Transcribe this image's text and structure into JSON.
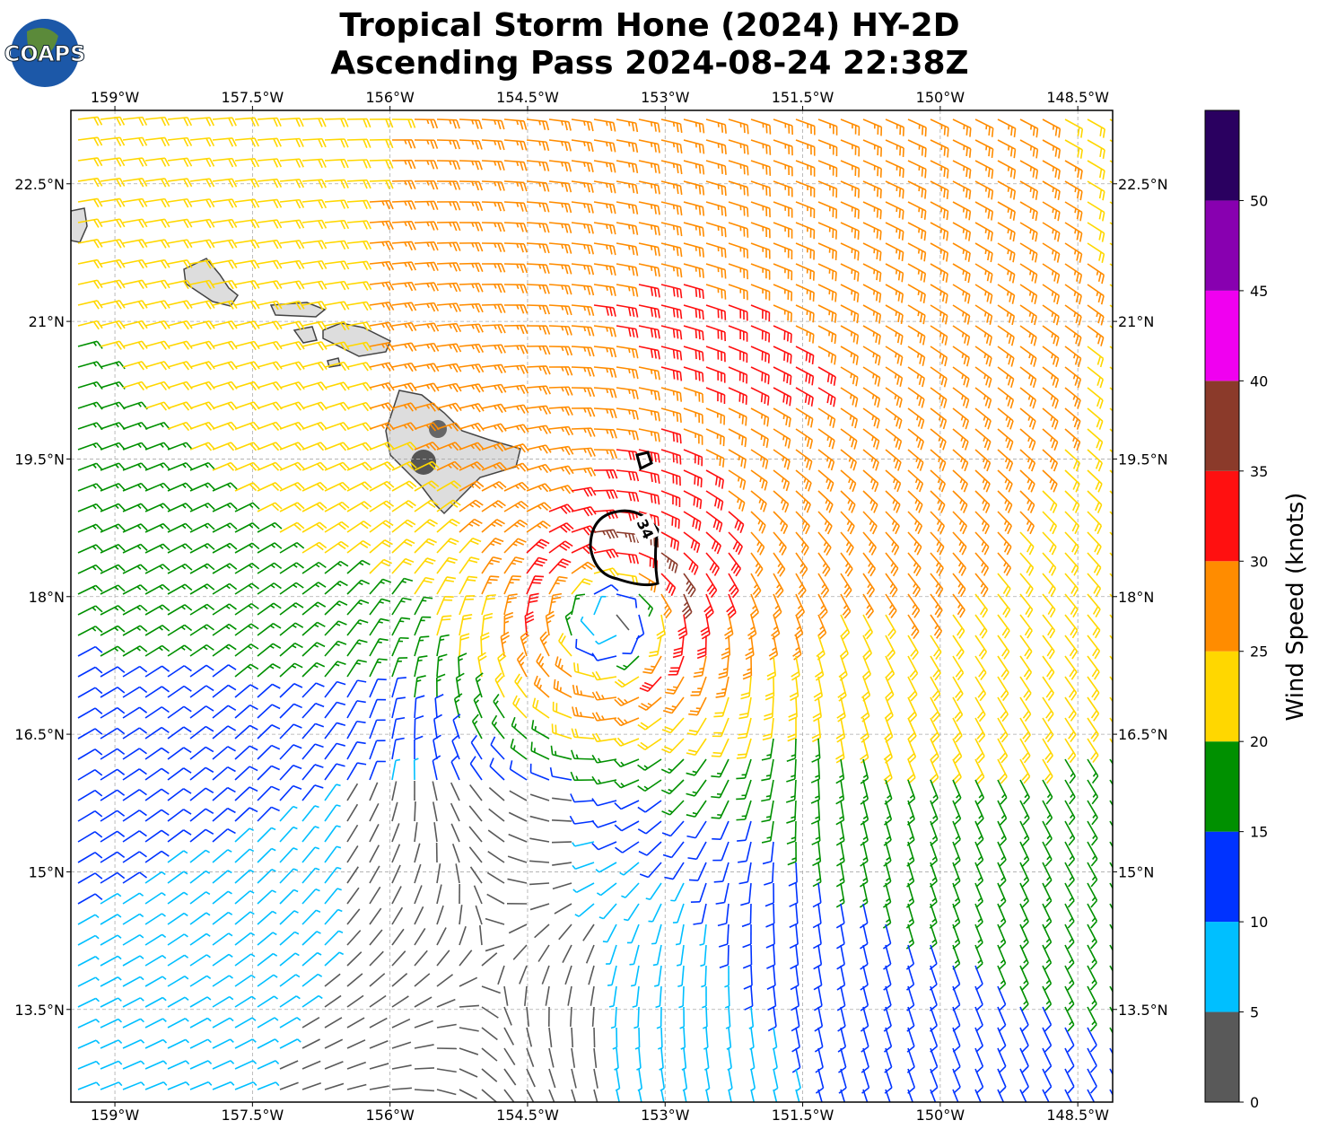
{
  "title": [
    "Tropical Storm Hone (2024) HY-2D",
    "Ascending Pass 2024-08-24 22:38Z"
  ],
  "logo": "COAPS",
  "map": {
    "xlim": [
      -159.48,
      -148.12
    ],
    "ylim": [
      12.49,
      23.3
    ],
    "xticks": [
      {
        "value": -159,
        "label": "159°W"
      },
      {
        "value": -157.5,
        "label": "157.5°W"
      },
      {
        "value": -156,
        "label": "156°W"
      },
      {
        "value": -154.5,
        "label": "154.5°W"
      },
      {
        "value": -153,
        "label": "153°W"
      },
      {
        "value": -151.5,
        "label": "151.5°W"
      },
      {
        "value": -150,
        "label": "150°W"
      },
      {
        "value": -148.5,
        "label": "148.5°W"
      }
    ],
    "yticks": [
      {
        "value": 13.5,
        "label": "13.5°N"
      },
      {
        "value": 15,
        "label": "15°N"
      },
      {
        "value": 16.5,
        "label": "16.5°N"
      },
      {
        "value": 18,
        "label": "18°N"
      },
      {
        "value": 19.5,
        "label": "19.5°N"
      },
      {
        "value": 21,
        "label": "21°N"
      },
      {
        "value": 22.5,
        "label": "22.5°N"
      }
    ],
    "grid": true,
    "contour_label": "34"
  },
  "colorbar": {
    "label": "Wind Speed (knots)",
    "lim": [
      0,
      55
    ],
    "ticks": [
      0,
      5,
      10,
      15,
      20,
      25,
      30,
      35,
      40,
      45,
      50
    ],
    "colors": [
      "#595959",
      "#00bfff",
      "#0033ff",
      "#009000",
      "#ffd700",
      "#ff8c00",
      "#ff1010",
      "#8b3a2a",
      "#f000f0",
      "#8800b0",
      "#2a0060"
    ]
  }
}
